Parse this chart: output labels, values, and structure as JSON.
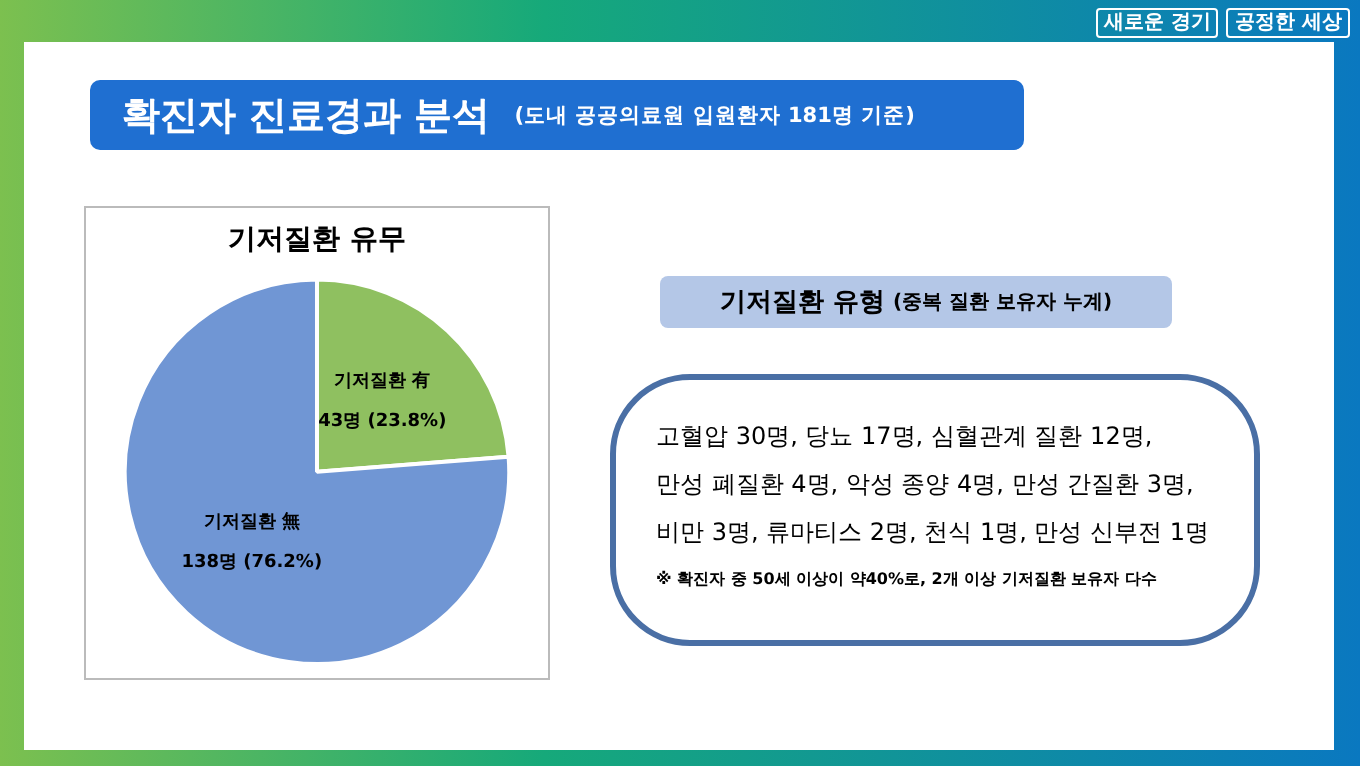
{
  "chart_data": {
    "type": "pie",
    "title": "기저질환 유무",
    "categories": [
      "기저질환 有",
      "기저질환 無"
    ],
    "values": [
      43,
      138
    ],
    "colors": [
      "#8fc060",
      "#7096d4"
    ],
    "value_labels": [
      "43명 (23.8%)",
      "138명 (76.2%)"
    ],
    "legend": false,
    "annotations": [
      "새로운 경기",
      "공정한 세상",
      "확진자 진료경과 분석",
      "(도내 공공의료원 입원환자 181명 기준)",
      "기저질환 유형",
      "(중복 질환 보유자 누계)",
      "고혈압 30명, 당뇨 17명, 심혈관계 질환 12명,",
      "만성 폐질환 4명, 악성 종양 4명, 만성 간질환 3명,",
      "비만 3명, 류마티스 2명, 천식 1명, 만성 신부전 1명",
      "※ 확진자 중 50세 이상이 약40%로, 2개 이상 기저질환 보유자 다수"
    ]
  }
}
